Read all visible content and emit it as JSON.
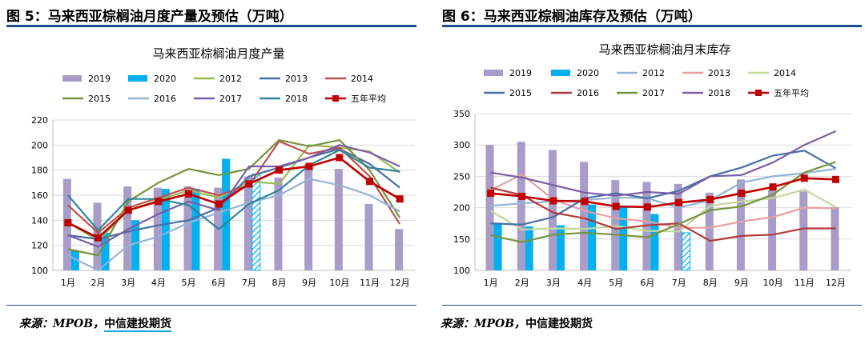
{
  "figures": [
    {
      "fig_label": "图 5：马来西亚棕榈油月度产量及预估（万吨）",
      "source_prefix": "来源：MPOB，",
      "source_org": "中信建投期货"
    },
    {
      "fig_label": "图 6：马来西亚棕榈油库存及预估（万吨）",
      "source_prefix": "来源：MPOB，",
      "source_org": "中信建投期货"
    }
  ],
  "chart_data": [
    {
      "type": "bar+line",
      "title": "马来西亚棕榈油月度产量",
      "categories": [
        "1月",
        "2月",
        "3月",
        "4月",
        "5月",
        "6月",
        "7月",
        "8月",
        "9月",
        "10月",
        "11月",
        "12月"
      ],
      "ylim": [
        100,
        220
      ],
      "yticks": [
        100,
        120,
        140,
        160,
        180,
        200,
        220
      ],
      "bars": [
        {
          "name": "2019",
          "color": "#a89cc8",
          "values": [
            173,
            154,
            167,
            166,
            167,
            166,
            175,
            174,
            185,
            181,
            153,
            133
          ]
        },
        {
          "name": "2020",
          "color": "#00b0f0",
          "values": [
            116,
            130,
            140,
            165,
            165,
            189,
            177,
            null,
            null,
            null,
            null,
            null
          ],
          "estimate_month_index": 6
        }
      ],
      "lines": [
        {
          "name": "2012",
          "color": "#9bbb59",
          "values": [
            138,
            124,
            148,
            156,
            164,
            158,
            171,
            169,
            200,
            198,
            195,
            178
          ]
        },
        {
          "name": "2013",
          "color": "#4a6fa5",
          "values": [
            128,
            125,
            131,
            136,
            140,
            150,
            175,
            182,
            190,
            197,
            185,
            166
          ]
        },
        {
          "name": "2014",
          "color": "#c0504d",
          "values": [
            152,
            130,
            150,
            158,
            166,
            160,
            168,
            203,
            193,
            198,
            175,
            137
          ]
        },
        {
          "name": "2015",
          "color": "#77933c",
          "values": [
            117,
            112,
            155,
            170,
            181,
            176,
            181,
            204,
            199,
            204,
            180,
            142
          ]
        },
        {
          "name": "2016",
          "color": "#95b3d7",
          "values": [
            112,
            100,
            120,
            127,
            138,
            146,
            154,
            160,
            173,
            168,
            160,
            147
          ]
        },
        {
          "name": "2017",
          "color": "#7b5ea7",
          "values": [
            128,
            119,
            133,
            145,
            155,
            148,
            183,
            183,
            190,
            200,
            194,
            183
          ]
        },
        {
          "name": "2018",
          "color": "#31859c",
          "values": [
            160,
            132,
            157,
            157,
            152,
            133,
            153,
            164,
            184,
            196,
            182,
            179
          ]
        },
        {
          "name": "五年平均",
          "color": "#c00000",
          "values": [
            138,
            126,
            148,
            155,
            161,
            153,
            169,
            180,
            183,
            190,
            171,
            157
          ]
        }
      ]
    },
    {
      "type": "bar+line",
      "title": "马来西亚棕榈油月末库存",
      "categories": [
        "1月",
        "2月",
        "3月",
        "4月",
        "5月",
        "6月",
        "7月",
        "8月",
        "9月",
        "10月",
        "11月",
        "12月"
      ],
      "ylim": [
        100,
        350
      ],
      "yticks": [
        100,
        150,
        200,
        250,
        300,
        350
      ],
      "bars": [
        {
          "name": "2019",
          "color": "#a89cc8",
          "values": [
            300,
            305,
            292,
            273,
            244,
            241,
            238,
            224,
            245,
            228,
            226,
            201
          ]
        },
        {
          "name": "2020",
          "color": "#00b0f0",
          "values": [
            176,
            170,
            172,
            205,
            203,
            190,
            160,
            null,
            null,
            null,
            null,
            null
          ],
          "estimate_month_index": 6
        }
      ],
      "lines": [
        {
          "name": "2012",
          "color": "#95b3d7",
          "values": [
            203,
            207,
            210,
            212,
            216,
            215,
            200,
            212,
            240,
            250,
            255,
            262
          ]
        },
        {
          "name": "2013",
          "color": "#e6a0a0",
          "values": [
            228,
            253,
            213,
            195,
            183,
            178,
            168,
            168,
            178,
            185,
            200,
            199
          ]
        },
        {
          "name": "2014",
          "color": "#c4d79b",
          "values": [
            195,
            165,
            167,
            166,
            171,
            163,
            162,
            203,
            210,
            215,
            229,
            201
          ]
        },
        {
          "name": "2015",
          "color": "#4a6fa5",
          "values": [
            175,
            173,
            185,
            215,
            223,
            215,
            227,
            250,
            264,
            283,
            291,
            263
          ]
        },
        {
          "name": "2016",
          "color": "#b03a3a",
          "values": [
            232,
            220,
            192,
            183,
            166,
            172,
            175,
            147,
            155,
            157,
            167,
            167
          ]
        },
        {
          "name": "2017",
          "color": "#77933c",
          "values": [
            156,
            145,
            157,
            160,
            157,
            153,
            174,
            196,
            202,
            221,
            256,
            273
          ]
        },
        {
          "name": "2018",
          "color": "#7b5ea7",
          "values": [
            256,
            248,
            236,
            224,
            219,
            225,
            222,
            250,
            252,
            272,
            300,
            322
          ]
        },
        {
          "name": "五年平均",
          "color": "#c00000",
          "values": [
            223,
            218,
            211,
            210,
            202,
            201,
            208,
            213,
            223,
            233,
            247,
            245
          ]
        }
      ]
    }
  ]
}
